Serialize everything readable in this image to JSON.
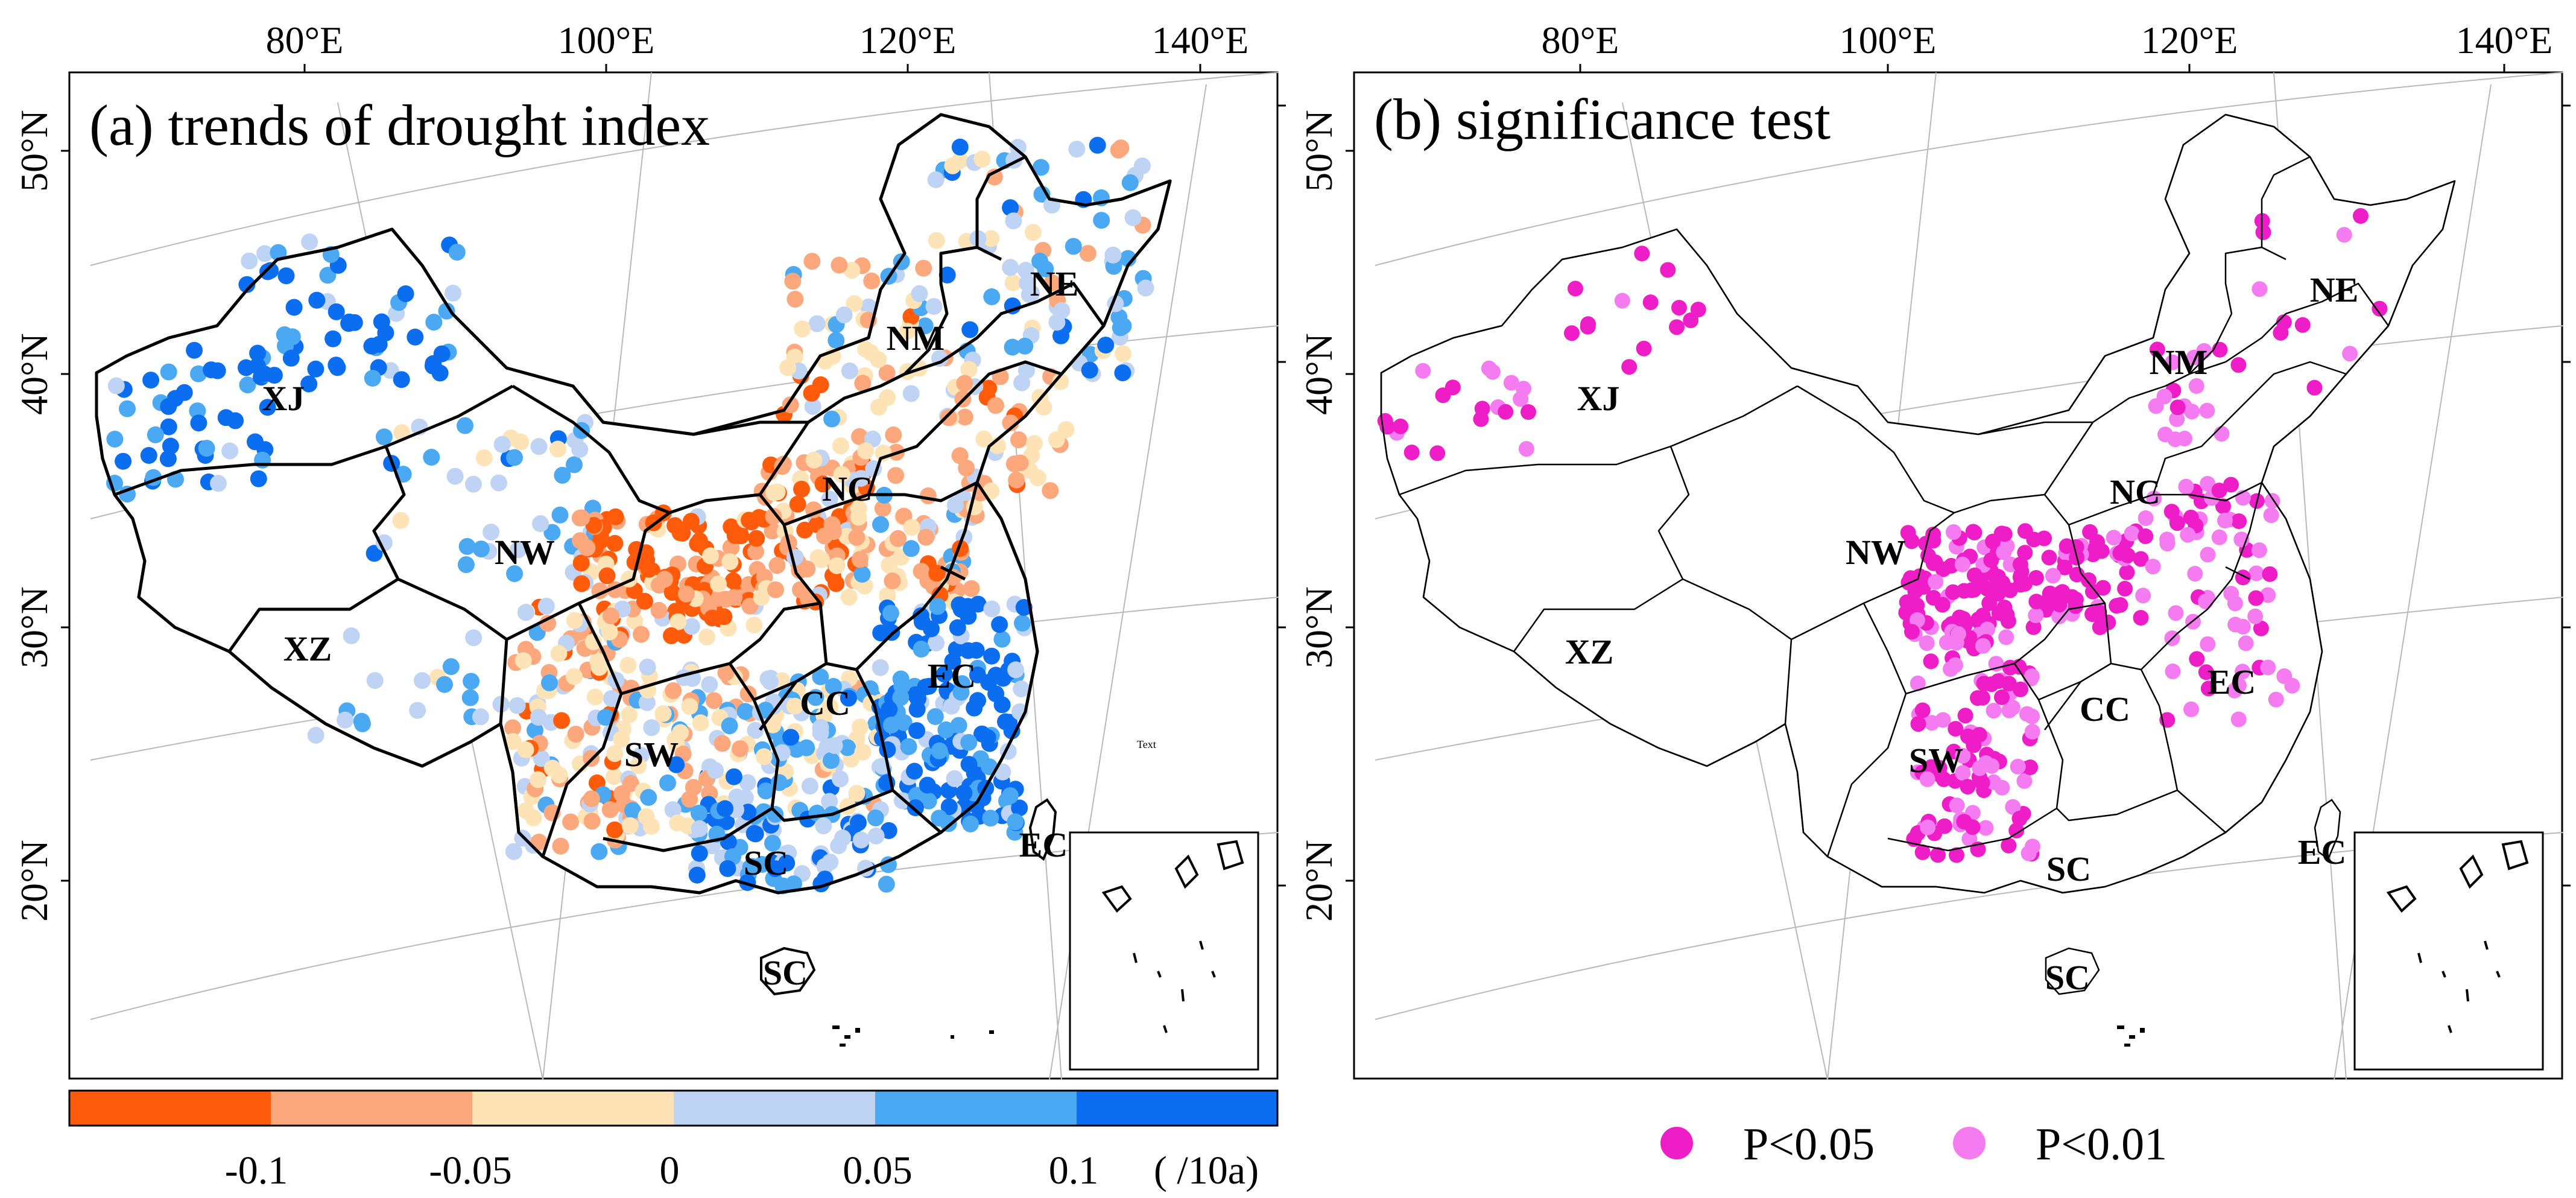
{
  "panels": [
    {
      "id": "a",
      "title": "(a)  trends of drought index",
      "lon_labels": [
        "80°E",
        "100°E",
        "120°E",
        "140°E"
      ],
      "lat_labels": [
        "50°N",
        "40°N",
        "30°N",
        "20°N"
      ],
      "regions": [
        "XJ",
        "NW",
        "XZ",
        "SW",
        "NM",
        "NE",
        "NC",
        "CC",
        "EC",
        "SC",
        "EC",
        "SC"
      ],
      "text_note": "Text"
    },
    {
      "id": "b",
      "title": "(b)  significance test",
      "lon_labels": [
        "80°E",
        "100°E",
        "120°E",
        "140°E"
      ],
      "lat_labels": [
        "50°N",
        "40°N",
        "30°N",
        "20°N"
      ],
      "regions": [
        "XJ",
        "NW",
        "XZ",
        "SW",
        "NM",
        "NE",
        "NC",
        "CC",
        "EC",
        "SC",
        "EC",
        "SC"
      ]
    }
  ],
  "colorbar": {
    "colors": [
      "#ff5b0a",
      "#fca77c",
      "#fde3b5",
      "#bfd3f4",
      "#4aa9f2",
      "#0b6ef0"
    ],
    "labels": [
      "-0.1",
      "-0.05",
      "0",
      "0.05",
      "0.1"
    ],
    "unit": "( /10a)"
  },
  "legend": [
    {
      "label": "P<0.05",
      "color": "#ee1dc8"
    },
    {
      "label": "P<0.01",
      "color": "#f57cf0"
    }
  ]
}
